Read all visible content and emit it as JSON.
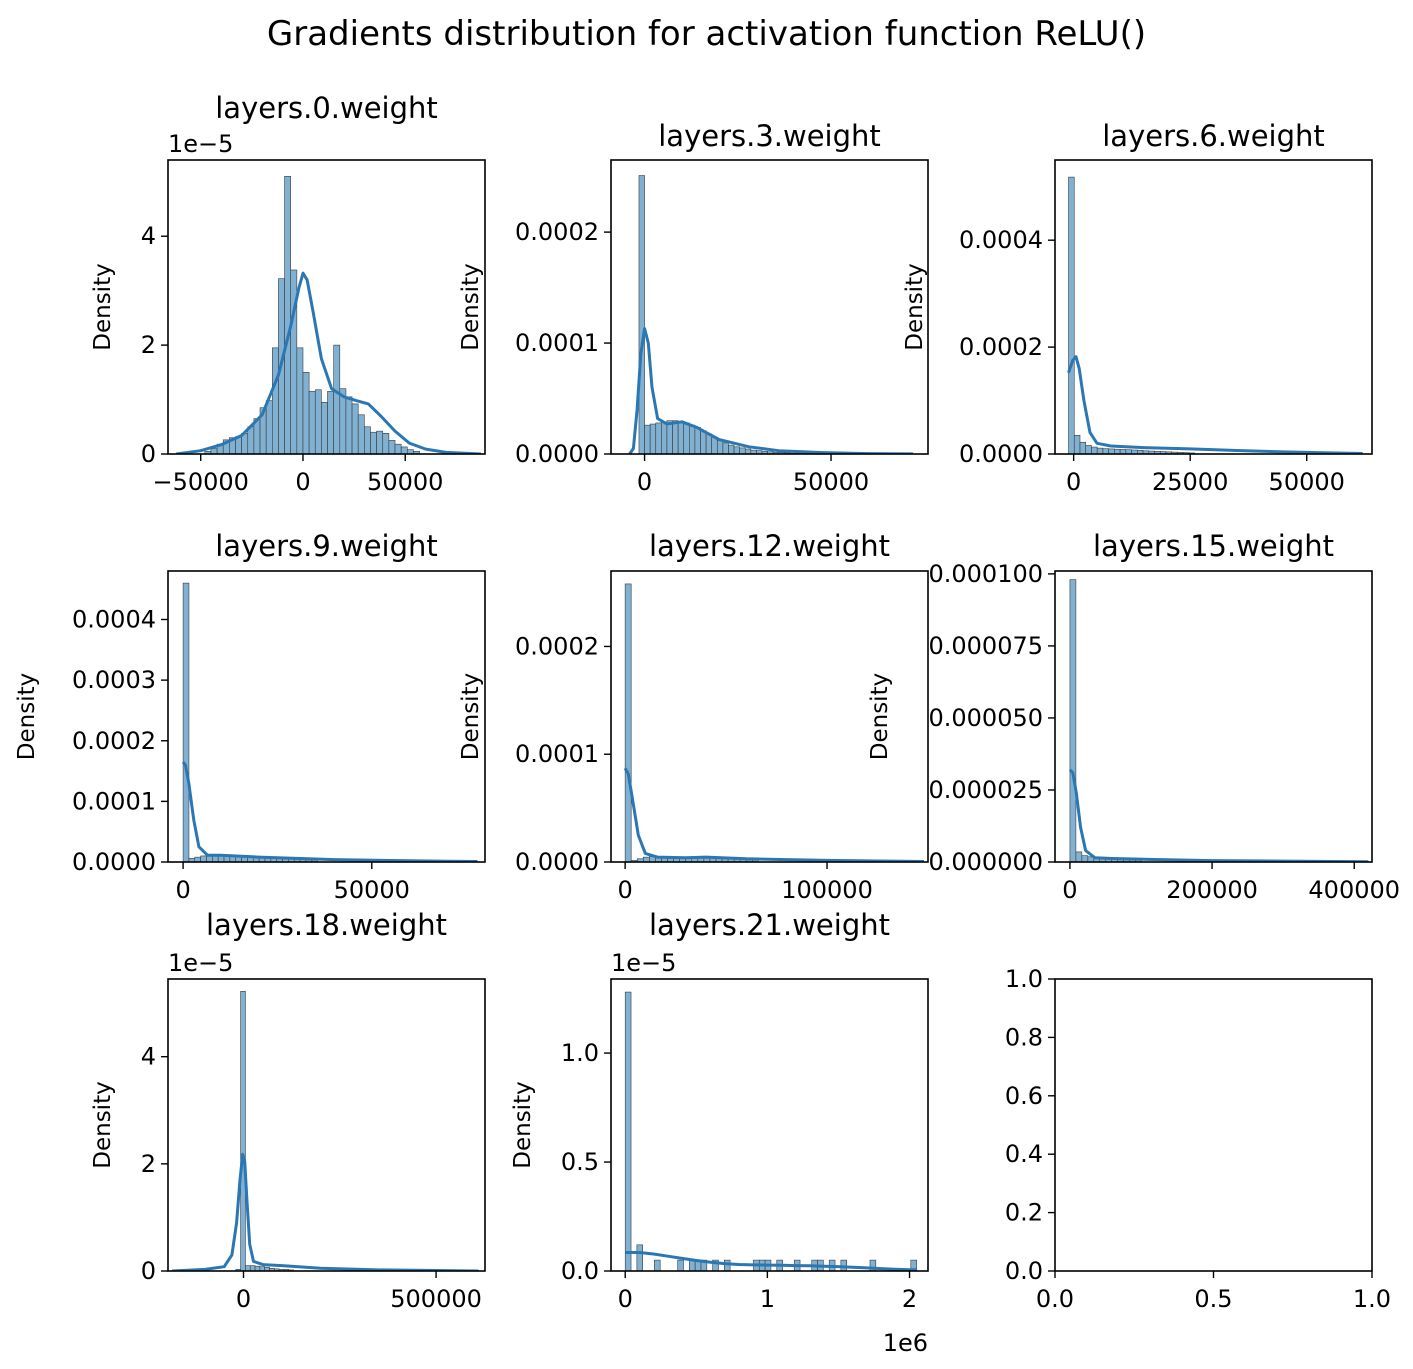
{
  "figure": {
    "title": "Gradients distribution for activation function ReLU()",
    "bar_color": "#80b1d3",
    "kde_color": "#2a77b4"
  },
  "chart_data": [
    {
      "type": "histogram+kde",
      "title": "layers.0.weight",
      "ylabel": "Density",
      "y_offset_label": "1e−5",
      "x_scale": 1,
      "y_scale": 1e-05,
      "xlim": [
        -66000,
        89000
      ],
      "ylim": [
        0,
        5.4
      ],
      "xticks": [
        {
          "v": -50000,
          "label": "−50000"
        },
        {
          "v": 0,
          "label": "0"
        },
        {
          "v": 50000,
          "label": "50000"
        }
      ],
      "yticks": [
        {
          "v": 0,
          "label": "0"
        },
        {
          "v": 2,
          "label": "2"
        },
        {
          "v": 4,
          "label": "4"
        }
      ],
      "bins": {
        "start": -48000,
        "width": 3000,
        "values": [
          0.05,
          0.1,
          0.18,
          0.26,
          0.3,
          0.32,
          0.38,
          0.5,
          0.65,
          0.85,
          0.98,
          1.95,
          3.22,
          5.1,
          3.38,
          1.95,
          1.5,
          1.15,
          1.18,
          0.95,
          1.15,
          2.0,
          1.2,
          1.05,
          0.92,
          0.72,
          0.5,
          0.4,
          0.42,
          0.38,
          0.25,
          0.18,
          0.13,
          0.08,
          0.05
        ]
      },
      "kde": [
        [
          -62000,
          0
        ],
        [
          -50000,
          0.06
        ],
        [
          -40000,
          0.17
        ],
        [
          -30000,
          0.34
        ],
        [
          -20000,
          0.72
        ],
        [
          -12000,
          1.45
        ],
        [
          -6000,
          2.35
        ],
        [
          -2000,
          3.05
        ],
        [
          0,
          3.32
        ],
        [
          2000,
          3.2
        ],
        [
          5000,
          2.6
        ],
        [
          9000,
          1.75
        ],
        [
          14000,
          1.2
        ],
        [
          20000,
          1.05
        ],
        [
          26000,
          0.98
        ],
        [
          32000,
          0.92
        ],
        [
          38000,
          0.7
        ],
        [
          45000,
          0.42
        ],
        [
          52000,
          0.2
        ],
        [
          60000,
          0.09
        ],
        [
          70000,
          0.03
        ],
        [
          87000,
          0.0
        ]
      ]
    },
    {
      "type": "histogram+kde",
      "title": "layers.3.weight",
      "ylabel": "Density",
      "y_offset_label": "",
      "x_scale": 1,
      "y_scale": 1,
      "xlim": [
        -9000,
        76000
      ],
      "ylim": [
        0,
        0.000265
      ],
      "xticks": [
        {
          "v": 0,
          "label": "0"
        },
        {
          "v": 50000,
          "label": "50000"
        }
      ],
      "yticks": [
        {
          "v": 0,
          "label": "0.0000"
        },
        {
          "v": 0.0001,
          "label": "0.0001"
        },
        {
          "v": 0.0002,
          "label": "0.0002"
        }
      ],
      "bins": {
        "start": -1500,
        "width": 1500,
        "values": [
          0.000251,
          2.6e-05,
          2.7e-05,
          2.8e-05,
          2.9e-05,
          3e-05,
          3e-05,
          2.9e-05,
          2.8e-05,
          2.6e-05,
          2.4e-05,
          2.1e-05,
          1.8e-05,
          1.5e-05,
          1.2e-05,
          1e-05,
          8e-06,
          6.5e-06,
          5.5e-06,
          4.5e-06,
          3.5e-06,
          3e-06,
          2.5e-06,
          2e-06,
          1.6e-06,
          1.3e-06,
          1e-06,
          8e-07,
          6e-07,
          5e-07,
          4e-07,
          3e-07
        ]
      },
      "kde": [
        [
          -4000,
          0
        ],
        [
          -3000,
          5e-06
        ],
        [
          -2000,
          4e-05
        ],
        [
          -1000,
          9e-05
        ],
        [
          0,
          0.000113
        ],
        [
          1000,
          0.0001
        ],
        [
          2000,
          6e-05
        ],
        [
          3500,
          3.2e-05
        ],
        [
          6000,
          2.7e-05
        ],
        [
          10000,
          2.9e-05
        ],
        [
          14000,
          2.4e-05
        ],
        [
          20000,
          1.3e-05
        ],
        [
          28000,
          6.5e-06
        ],
        [
          36000,
          3e-06
        ],
        [
          48000,
          1.3e-06
        ],
        [
          60000,
          4e-07
        ],
        [
          72000,
          1e-07
        ]
      ]
    },
    {
      "type": "histogram+kde",
      "title": "layers.6.weight",
      "ylabel": "Density",
      "y_offset_label": "",
      "x_scale": 1,
      "y_scale": 1,
      "xlim": [
        -4000,
        64000
      ],
      "ylim": [
        0,
        0.00055
      ],
      "xticks": [
        {
          "v": 0,
          "label": "0"
        },
        {
          "v": 25000,
          "label": "25000"
        },
        {
          "v": 50000,
          "label": "50000"
        }
      ],
      "yticks": [
        {
          "v": 0,
          "label": "0.0000"
        },
        {
          "v": 0.0002,
          "label": "0.0002"
        },
        {
          "v": 0.0004,
          "label": "0.0004"
        }
      ],
      "bins": {
        "start": -1100,
        "width": 1230,
        "values": [
          0.000518,
          3.5e-05,
          2.2e-05,
          1.6e-05,
          1.3e-05,
          1.1e-05,
          1e-05,
          9.5e-06,
          9e-06,
          8.5e-06,
          8e-06,
          7.5e-06,
          7e-06,
          6e-06,
          5.5e-06,
          5e-06,
          4.5e-06,
          4e-06,
          3.5e-06,
          3e-06,
          2.5e-06,
          2e-06
        ]
      },
      "kde": [
        [
          -1100,
          0.000152
        ],
        [
          -200,
          0.000175
        ],
        [
          500,
          0.000182
        ],
        [
          1200,
          0.00016
        ],
        [
          2200,
          0.0001
        ],
        [
          3500,
          4e-05
        ],
        [
          5000,
          2e-05
        ],
        [
          8000,
          1.5e-05
        ],
        [
          15000,
          1.2e-05
        ],
        [
          25000,
          9.5e-06
        ],
        [
          35000,
          6.5e-06
        ],
        [
          45000,
          4e-06
        ],
        [
          55000,
          2e-06
        ],
        [
          62000,
          1e-06
        ]
      ]
    },
    {
      "type": "histogram+kde",
      "title": "layers.9.weight",
      "ylabel": "Density",
      "y_offset_label": "",
      "x_scale": 1,
      "y_scale": 1,
      "xlim": [
        -4000,
        80000
      ],
      "ylim": [
        0,
        0.00048
      ],
      "xticks": [
        {
          "v": 0,
          "label": "0"
        },
        {
          "v": 50000,
          "label": "50000"
        }
      ],
      "yticks": [
        {
          "v": 0,
          "label": "0.0000"
        },
        {
          "v": 0.0001,
          "label": "0.0001"
        },
        {
          "v": 0.0002,
          "label": "0.0002"
        },
        {
          "v": 0.0003,
          "label": "0.0003"
        },
        {
          "v": 0.0004,
          "label": "0.0004"
        }
      ],
      "bins": {
        "start": 0,
        "width": 1550,
        "values": [
          0.00046,
          6e-06,
          8e-06,
          1e-05,
          1.1e-05,
          1.1e-05,
          1.1e-05,
          1e-05,
          1e-05,
          9.5e-06,
          9e-06,
          8.5e-06,
          8e-06,
          7.5e-06,
          7e-06,
          6.5e-06,
          6e-06,
          5.5e-06,
          5e-06,
          4.5e-06,
          4e-06,
          3.5e-06,
          3e-06
        ]
      },
      "kde": [
        [
          0,
          0.000165
        ],
        [
          600,
          0.00016
        ],
        [
          1500,
          0.00013
        ],
        [
          2800,
          7e-05
        ],
        [
          4200,
          2.5e-05
        ],
        [
          6500,
          1.1e-05
        ],
        [
          10000,
          1.1e-05
        ],
        [
          20000,
          8e-06
        ],
        [
          30000,
          6e-06
        ],
        [
          40000,
          4e-06
        ],
        [
          55000,
          2.5e-06
        ],
        [
          70000,
          1.2e-06
        ],
        [
          78000,
          8e-07
        ]
      ]
    },
    {
      "type": "histogram+kde",
      "title": "layers.12.weight",
      "ylabel": "Density",
      "y_offset_label": "",
      "x_scale": 1,
      "y_scale": 1,
      "xlim": [
        -7000,
        150000
      ],
      "ylim": [
        0,
        0.00027
      ],
      "xticks": [
        {
          "v": 0,
          "label": "0"
        },
        {
          "v": 100000,
          "label": "100000"
        }
      ],
      "yticks": [
        {
          "v": 0,
          "label": "0.0000"
        },
        {
          "v": 0.0001,
          "label": "0.0001"
        },
        {
          "v": 0.0002,
          "label": "0.0002"
        }
      ],
      "bins": {
        "start": 0,
        "width": 3000,
        "values": [
          0.000258,
          1.5e-06,
          3e-06,
          4.5e-06,
          5e-06,
          5e-06,
          5e-06,
          5e-06,
          4.8e-06,
          4.5e-06,
          4.5e-06,
          4.5e-06,
          4e-06,
          4e-06,
          3.8e-06,
          3.5e-06,
          3e-06,
          2.8e-06,
          2.5e-06,
          2.2e-06,
          2e-06,
          1.8e-06
        ]
      },
      "kde": [
        [
          0,
          8.7e-05
        ],
        [
          1500,
          8.2e-05
        ],
        [
          3500,
          6e-05
        ],
        [
          6500,
          2.5e-05
        ],
        [
          10000,
          8e-06
        ],
        [
          16000,
          4.5e-06
        ],
        [
          30000,
          4e-06
        ],
        [
          40000,
          4.5e-06
        ],
        [
          60000,
          3e-06
        ],
        [
          80000,
          2.2e-06
        ],
        [
          100000,
          1.5e-06
        ],
        [
          125000,
          9e-07
        ],
        [
          148000,
          5e-07
        ]
      ]
    },
    {
      "type": "histogram+kde",
      "title": "layers.15.weight",
      "ylabel": "Density",
      "y_offset_label": "",
      "x_scale": 1,
      "y_scale": 1,
      "xlim": [
        -21000,
        425000
      ],
      "ylim": [
        0,
        0.000101
      ],
      "xticks": [
        {
          "v": 0,
          "label": "0"
        },
        {
          "v": 200000,
          "label": "200000"
        },
        {
          "v": 400000,
          "label": "400000"
        }
      ],
      "yticks": [
        {
          "v": 0,
          "label": "0.000000"
        },
        {
          "v": 2.5e-05,
          "label": "0.000025"
        },
        {
          "v": 5e-05,
          "label": "0.000050"
        },
        {
          "v": 7.5e-05,
          "label": "0.000075"
        },
        {
          "v": 0.0001,
          "label": "0.000100"
        }
      ],
      "bins": {
        "start": 0,
        "width": 8400,
        "values": [
          9.8e-05,
          3.5e-06,
          2.2e-06,
          1.8e-06,
          1.5e-06,
          1.3e-06,
          1.2e-06,
          1.1e-06,
          1e-06,
          9e-07,
          8e-07,
          7e-07
        ]
      },
      "kde": [
        [
          0,
          3.2e-05
        ],
        [
          4000,
          3.1e-05
        ],
        [
          9000,
          2.4e-05
        ],
        [
          15000,
          1.2e-05
        ],
        [
          22000,
          4e-06
        ],
        [
          35000,
          1.5e-06
        ],
        [
          60000,
          1.2e-06
        ],
        [
          110000,
          9e-07
        ],
        [
          200000,
          5e-07
        ],
        [
          300000,
          3e-07
        ],
        [
          420000,
          1e-07
        ]
      ]
    },
    {
      "type": "histogram+kde",
      "title": "layers.18.weight",
      "ylabel": "Density",
      "y_offset_label": "1e−5",
      "x_scale": 1,
      "y_scale": 1e-05,
      "xlim": [
        -196000,
        627000
      ],
      "ylim": [
        0,
        5.45
      ],
      "xticks": [
        {
          "v": 0,
          "label": "0"
        },
        {
          "v": 500000,
          "label": "500000"
        }
      ],
      "yticks": [
        {
          "v": 0,
          "label": "0"
        },
        {
          "v": 2,
          "label": "2"
        },
        {
          "v": 4,
          "label": "4"
        }
      ],
      "bins": {
        "start": -20000,
        "width": 12500,
        "values": [
          0.03,
          5.22,
          0.1,
          0.1,
          0.09,
          0.08,
          0.07,
          0.05,
          0.04,
          0.03,
          0.03,
          0.02
        ]
      },
      "kde": [
        [
          -185000,
          0.0
        ],
        [
          -100000,
          0.03
        ],
        [
          -50000,
          0.08
        ],
        [
          -30000,
          0.3
        ],
        [
          -18000,
          0.9
        ],
        [
          -9000,
          1.7
        ],
        [
          -2000,
          2.18
        ],
        [
          3000,
          2.05
        ],
        [
          9000,
          1.3
        ],
        [
          16000,
          0.5
        ],
        [
          26000,
          0.18
        ],
        [
          50000,
          0.12
        ],
        [
          100000,
          0.1
        ],
        [
          200000,
          0.05
        ],
        [
          350000,
          0.02
        ],
        [
          500000,
          0.01
        ],
        [
          610000,
          0.0
        ]
      ]
    },
    {
      "type": "histogram+kde",
      "title": "layers.21.weight",
      "ylabel": "Density",
      "y_offset_label": "1e−5",
      "x_offset_label": "1e6",
      "x_scale": 1000000.0,
      "y_scale": 1e-05,
      "xlim": [
        -0.1,
        2.13
      ],
      "ylim": [
        0,
        1.34
      ],
      "xticks": [
        {
          "v": 0,
          "label": "0"
        },
        {
          "v": 1,
          "label": "1"
        },
        {
          "v": 2,
          "label": "2"
        }
      ],
      "yticks": [
        {
          "v": 0,
          "label": "0.0"
        },
        {
          "v": 0.5,
          "label": "0.5"
        },
        {
          "v": 1.0,
          "label": "1.0"
        }
      ],
      "bins": {
        "start": 0,
        "width": 0.041,
        "values": [
          1.28,
          0,
          0.12,
          0,
          0,
          0.05,
          0,
          0,
          0,
          0.05,
          0,
          0.05,
          0.05,
          0.05,
          0,
          0.05,
          0,
          0.05,
          0,
          0,
          0,
          0,
          0.05,
          0.05,
          0.05,
          0,
          0.05,
          0,
          0,
          0.05,
          0,
          0,
          0.05,
          0.05,
          0,
          0.05,
          0,
          0.05,
          0,
          0,
          0,
          0,
          0.05,
          0,
          0,
          0,
          0,
          0,
          0,
          0.05
        ]
      },
      "kde": [
        [
          0,
          0.085
        ],
        [
          0.1,
          0.085
        ],
        [
          0.2,
          0.078
        ],
        [
          0.3,
          0.068
        ],
        [
          0.4,
          0.058
        ],
        [
          0.5,
          0.048
        ],
        [
          0.6,
          0.04
        ],
        [
          0.7,
          0.034
        ],
        [
          0.8,
          0.03
        ],
        [
          0.9,
          0.028
        ],
        [
          1.0,
          0.027
        ],
        [
          1.1,
          0.026
        ],
        [
          1.2,
          0.025
        ],
        [
          1.3,
          0.024
        ],
        [
          1.4,
          0.022
        ],
        [
          1.5,
          0.02
        ],
        [
          1.6,
          0.017
        ],
        [
          1.7,
          0.014
        ],
        [
          1.8,
          0.011
        ],
        [
          1.9,
          0.008
        ],
        [
          2.0,
          0.006
        ],
        [
          2.05,
          0.005
        ]
      ]
    },
    {
      "type": "empty",
      "title": "",
      "ylabel": "",
      "y_offset_label": "",
      "xlim": [
        0,
        1
      ],
      "ylim": [
        0,
        1
      ],
      "xticks": [
        {
          "v": 0,
          "label": "0.0"
        },
        {
          "v": 0.5,
          "label": "0.5"
        },
        {
          "v": 1,
          "label": "1.0"
        }
      ],
      "yticks": [
        {
          "v": 0,
          "label": "0.0"
        },
        {
          "v": 0.2,
          "label": "0.2"
        },
        {
          "v": 0.4,
          "label": "0.4"
        },
        {
          "v": 0.6,
          "label": "0.6"
        },
        {
          "v": 0.8,
          "label": "0.8"
        },
        {
          "v": 1,
          "label": "1.0"
        }
      ]
    }
  ]
}
